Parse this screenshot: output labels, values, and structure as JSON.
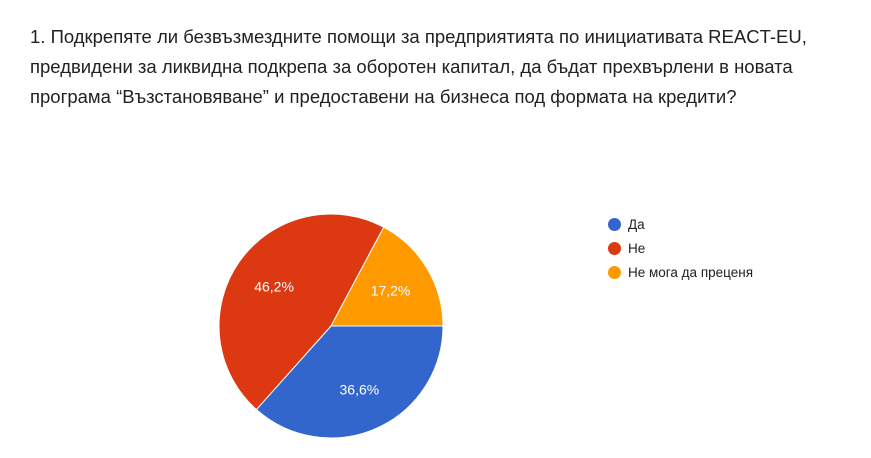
{
  "question": {
    "text": "1. Подкрепяте ли безвъзмездните помощи за предприятията по инициативата REACT-EU, предвидени за ликвидна подкрепа за оборотен капитал, да бъдат прехвърлени в новата програма “Възстановяване” и предоставени на бизнеса под формата на кредити?"
  },
  "chart_data": {
    "type": "pie",
    "title": "",
    "legend_position": "right",
    "categories": [
      "Да",
      "Не",
      "Не мога да преценя"
    ],
    "values": [
      36.6,
      46.2,
      17.2
    ],
    "labels": [
      "36,6%",
      "46,2%",
      "17,2%"
    ],
    "colors": [
      "#3366cc",
      "#dc3912",
      "#ff9900"
    ]
  }
}
